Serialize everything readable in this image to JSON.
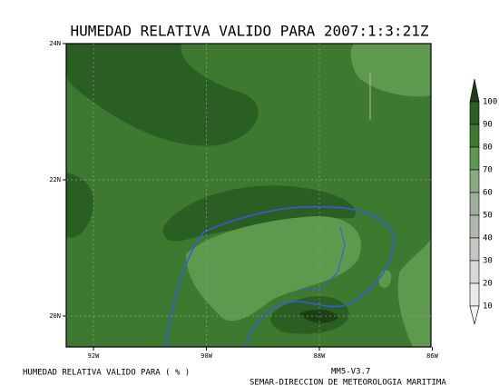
{
  "title": "HUMEDAD RELATIVA VALIDO PARA 2007:1:3:21Z",
  "lat_ticks": [
    "24N",
    "22N",
    "20N"
  ],
  "lon_ticks": [
    "92W",
    "90W",
    "88W",
    "86W"
  ],
  "colorbar": {
    "levels": [
      100,
      90,
      80,
      70,
      60,
      50,
      40,
      30,
      20,
      10
    ],
    "colors": [
      "#1c3f14",
      "#2b5e22",
      "#3d7a30",
      "#5d9a4e",
      "#8aaa80",
      "#9eae9a",
      "#b0b8ae",
      "#c4c8c4",
      "#d8d8d8",
      "#eaeaea"
    ]
  },
  "footer": {
    "variable": "HUMEDAD RELATIVA VALIDO PARA ( % )",
    "model": "MM5-V3.7",
    "agency": "SEMAR-DIRECCION DE METEOROLOGIA MARITIMA"
  }
}
